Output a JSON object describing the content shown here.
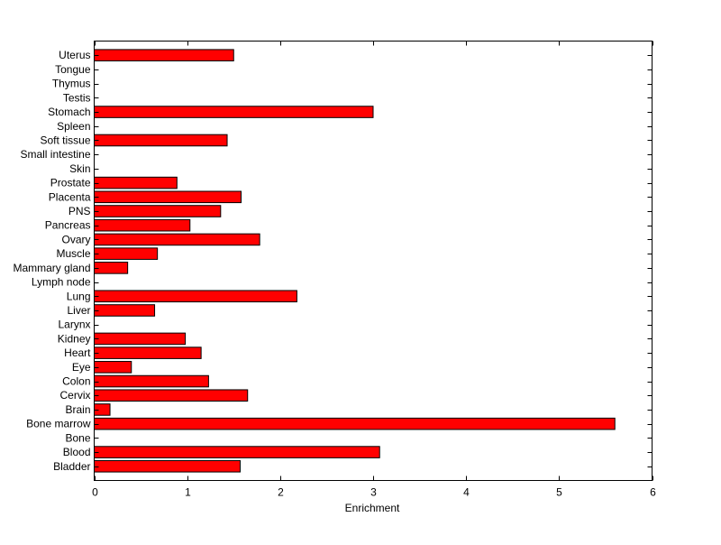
{
  "chart_data": {
    "type": "bar",
    "orientation": "horizontal",
    "title": "",
    "xlabel": "Enrichment",
    "ylabel": "",
    "xlim": [
      0,
      6
    ],
    "xticks": [
      0,
      1,
      2,
      3,
      4,
      5,
      6
    ],
    "grid": false,
    "bar_color": "#ff0000",
    "categories": [
      "Bladder",
      "Blood",
      "Bone",
      "Bone marrow",
      "Brain",
      "Cervix",
      "Colon",
      "Eye",
      "Heart",
      "Kidney",
      "Larynx",
      "Liver",
      "Lung",
      "Lymph node",
      "Mammary gland",
      "Muscle",
      "Ovary",
      "Pancreas",
      "PNS",
      "Placenta",
      "Prostate",
      "Skin",
      "Small intestine",
      "Soft tissue",
      "Spleen",
      "Stomach",
      "Testis",
      "Thymus",
      "Tongue",
      "Uterus"
    ],
    "values": [
      1.57,
      3.07,
      0,
      5.6,
      0.17,
      1.65,
      1.23,
      0.4,
      1.15,
      0.98,
      0,
      0.65,
      2.18,
      0,
      0.36,
      0.68,
      1.78,
      1.03,
      1.36,
      1.58,
      0.89,
      0,
      0,
      1.43,
      0,
      3.0,
      0,
      0,
      0,
      1.5
    ]
  }
}
